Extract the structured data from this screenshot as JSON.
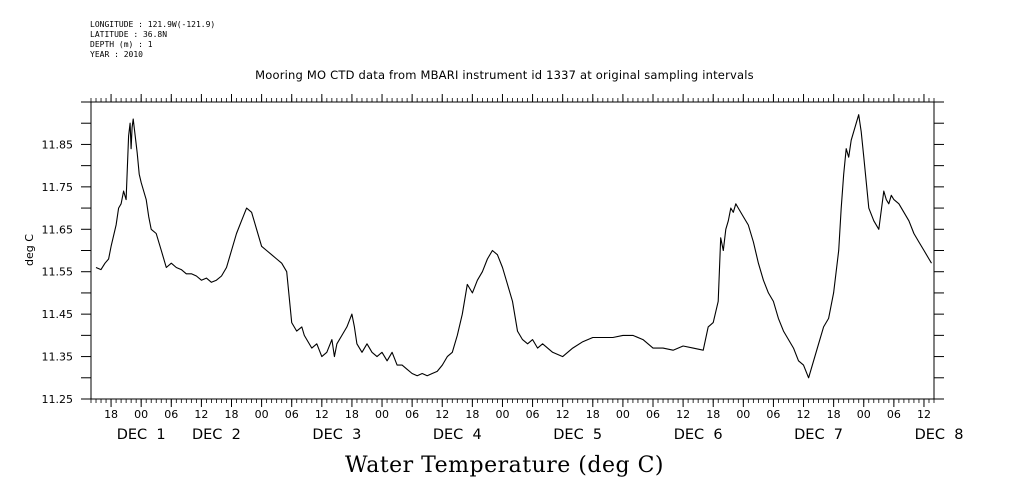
{
  "header": {
    "metadata": [
      "LONGITUDE : 121.9W(-121.9)",
      "LATITUDE : 36.8N",
      "DEPTH (m) : 1",
      "YEAR : 2010"
    ]
  },
  "chart_data": {
    "type": "line",
    "title": "Mooring MO CTD data from MBARI instrument id 1337 at original sampling intervals",
    "bottom_title": "Water Temperature (deg C)",
    "ylabel": "deg C",
    "xlabel": "",
    "ylim": [
      11.25,
      11.95
    ],
    "xlim_hours": [
      -10,
      158
    ],
    "y_ticks": [
      "11.25",
      "11.35",
      "11.45",
      "11.55",
      "11.65",
      "11.75",
      "11.85"
    ],
    "x_hour_ticks": [
      {
        "h": -6,
        "label": "18"
      },
      {
        "h": 0,
        "label": "00"
      },
      {
        "h": 6,
        "label": "06"
      },
      {
        "h": 12,
        "label": "12"
      },
      {
        "h": 18,
        "label": "18"
      },
      {
        "h": 24,
        "label": "00"
      },
      {
        "h": 30,
        "label": "06"
      },
      {
        "h": 36,
        "label": "12"
      },
      {
        "h": 42,
        "label": "18"
      },
      {
        "h": 48,
        "label": "00"
      },
      {
        "h": 54,
        "label": "06"
      },
      {
        "h": 60,
        "label": "12"
      },
      {
        "h": 66,
        "label": "18"
      },
      {
        "h": 72,
        "label": "00"
      },
      {
        "h": 78,
        "label": "06"
      },
      {
        "h": 84,
        "label": "12"
      },
      {
        "h": 90,
        "label": "18"
      },
      {
        "h": 96,
        "label": "00"
      },
      {
        "h": 102,
        "label": "06"
      },
      {
        "h": 108,
        "label": "12"
      },
      {
        "h": 114,
        "label": "18"
      },
      {
        "h": 120,
        "label": "00"
      },
      {
        "h": 126,
        "label": "06"
      },
      {
        "h": 132,
        "label": "12"
      },
      {
        "h": 138,
        "label": "18"
      },
      {
        "h": 144,
        "label": "00"
      },
      {
        "h": 150,
        "label": "06"
      },
      {
        "h": 156,
        "label": "12"
      }
    ],
    "x_day_labels": [
      {
        "h": 0,
        "label": "DEC  1"
      },
      {
        "h": 15,
        "label": "DEC  2"
      },
      {
        "h": 39,
        "label": "DEC  3"
      },
      {
        "h": 63,
        "label": "DEC  4"
      },
      {
        "h": 87,
        "label": "DEC  5"
      },
      {
        "h": 111,
        "label": "DEC  6"
      },
      {
        "h": 135,
        "label": "DEC  7"
      },
      {
        "h": 159,
        "label": "DEC  8"
      }
    ],
    "series": [
      {
        "x_hours": [
          -9.0,
          -8.0,
          -7.2,
          -6.5,
          -6.0,
          -5.0,
          -4.5,
          -4.0,
          -3.5,
          -3.0,
          -2.5,
          -2.2,
          -2.0,
          -1.8,
          -1.6,
          -1.2,
          -0.8,
          -0.4,
          0.0,
          0.5,
          1.0,
          1.5,
          2.0,
          3.0,
          4.0,
          5.0,
          6.0,
          7.0,
          8.0,
          9.0,
          10.0,
          11.0,
          12.0,
          13.0,
          14.0,
          15.0,
          16.0,
          17.0,
          18.0,
          19.0,
          20.0,
          21.0,
          22.0,
          23.0,
          24.0,
          25.0,
          26.0,
          27.0,
          28.0,
          29.0,
          30.0,
          31.0,
          32.0,
          32.5,
          33.0,
          34.0,
          35.0,
          36.0,
          37.0,
          38.0,
          38.5,
          39.0,
          40.0,
          41.0,
          42.0,
          42.5,
          43.0,
          44.0,
          45.0,
          46.0,
          47.0,
          48.0,
          49.0,
          50.0,
          51.0,
          52.0,
          53.0,
          54.0,
          55.0,
          56.0,
          57.0,
          58.0,
          59.0,
          60.0,
          61.0,
          62.0,
          63.0,
          64.0,
          65.0,
          66.0,
          67.0,
          68.0,
          69.0,
          70.0,
          71.0,
          72.0,
          73.0,
          74.0,
          75.0,
          76.0,
          77.0,
          78.0,
          79.0,
          80.0,
          82.0,
          84.0,
          86.0,
          88.0,
          90.0,
          92.0,
          94.0,
          96.0,
          98.0,
          100.0,
          102.0,
          104.0,
          106.0,
          108.0,
          110.0,
          112.0,
          113.0,
          114.0,
          115.0,
          115.5,
          116.0,
          116.5,
          117.0,
          117.5,
          118.0,
          118.5,
          119.0,
          120.0,
          121.0,
          122.0,
          123.0,
          124.0,
          125.0,
          126.0,
          127.0,
          128.0,
          129.0,
          130.0,
          131.0,
          132.0,
          133.0,
          134.0,
          135.0,
          136.0,
          137.0,
          138.0,
          139.0,
          139.5,
          140.0,
          140.5,
          141.0,
          141.5,
          142.0,
          142.5,
          143.0,
          143.5,
          144.0,
          144.5,
          145.0,
          146.0,
          147.0,
          148.0,
          148.5,
          149.0,
          149.5,
          150.0,
          151.0,
          152.0,
          153.0,
          154.0,
          155.0,
          156.0,
          157.0,
          157.5
        ],
        "values": [
          11.56,
          11.555,
          11.57,
          11.58,
          11.61,
          11.66,
          11.7,
          11.71,
          11.74,
          11.72,
          11.87,
          11.9,
          11.84,
          11.89,
          11.91,
          11.87,
          11.83,
          11.78,
          11.76,
          11.74,
          11.72,
          11.68,
          11.65,
          11.64,
          11.6,
          11.56,
          11.57,
          11.56,
          11.555,
          11.545,
          11.545,
          11.54,
          11.53,
          11.535,
          11.525,
          11.53,
          11.54,
          11.56,
          11.6,
          11.64,
          11.67,
          11.7,
          11.69,
          11.65,
          11.61,
          11.6,
          11.59,
          11.58,
          11.57,
          11.55,
          11.43,
          11.41,
          11.42,
          11.4,
          11.39,
          11.37,
          11.38,
          11.35,
          11.36,
          11.39,
          11.35,
          11.38,
          11.4,
          11.42,
          11.45,
          11.42,
          11.38,
          11.36,
          11.38,
          11.36,
          11.35,
          11.36,
          11.34,
          11.36,
          11.33,
          11.33,
          11.32,
          11.31,
          11.305,
          11.31,
          11.305,
          11.31,
          11.315,
          11.33,
          11.35,
          11.36,
          11.4,
          11.45,
          11.52,
          11.5,
          11.53,
          11.55,
          11.58,
          11.6,
          11.59,
          11.56,
          11.52,
          11.48,
          11.41,
          11.39,
          11.38,
          11.39,
          11.37,
          11.38,
          11.36,
          11.35,
          11.37,
          11.385,
          11.395,
          11.395,
          11.395,
          11.4,
          11.4,
          11.39,
          11.37,
          11.37,
          11.365,
          11.375,
          11.37,
          11.365,
          11.42,
          11.43,
          11.48,
          11.63,
          11.6,
          11.65,
          11.67,
          11.7,
          11.69,
          11.71,
          11.7,
          11.68,
          11.66,
          11.62,
          11.57,
          11.53,
          11.5,
          11.48,
          11.44,
          11.41,
          11.39,
          11.37,
          11.34,
          11.33,
          11.3,
          11.34,
          11.38,
          11.42,
          11.44,
          11.5,
          11.6,
          11.7,
          11.78,
          11.84,
          11.82,
          11.86,
          11.88,
          11.9,
          11.92,
          11.88,
          11.82,
          11.76,
          11.7,
          11.67,
          11.65,
          11.74,
          11.72,
          11.71,
          11.73,
          11.72,
          11.71,
          11.69,
          11.67,
          11.64,
          11.62,
          11.6,
          11.58,
          11.57
        ]
      }
    ]
  }
}
